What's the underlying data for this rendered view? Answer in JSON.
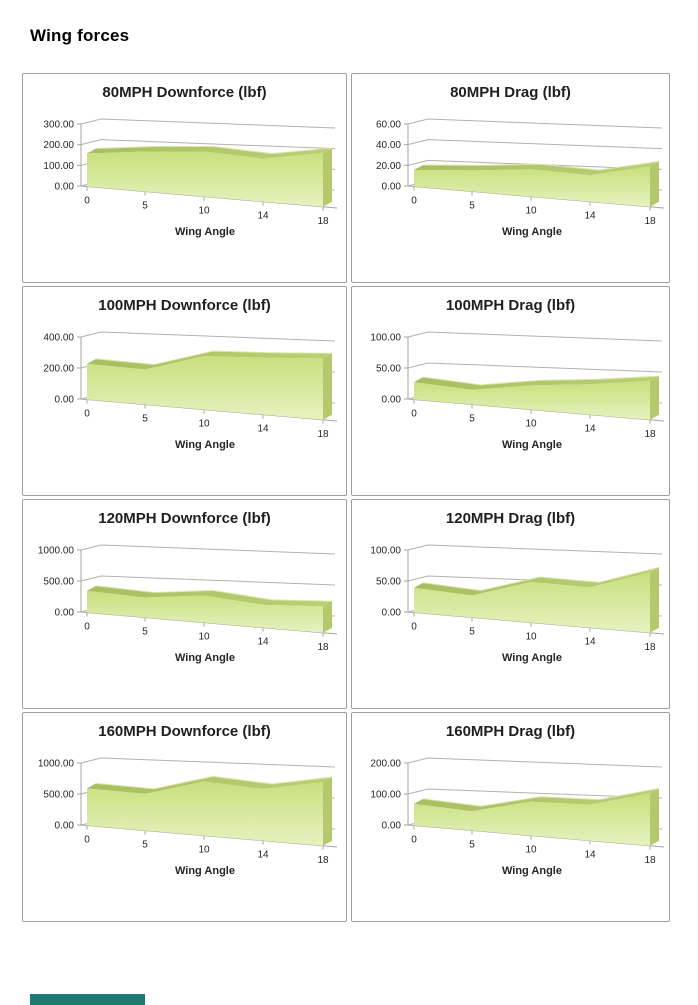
{
  "page": {
    "title": "Wing forces"
  },
  "footer": {
    "accent_bar_color": "#1e7b74"
  },
  "colors": {
    "area_face_top": "#c9df7d",
    "area_face_bottom": "#e6f2c1",
    "area_band": "#a9bd60",
    "area_band_light": "#bccf74",
    "area_side": "#b4c96b",
    "area_highlight": "#d9e7a4",
    "gridline": "#b5b1ab",
    "axis": "#a8a49e",
    "box_border": "#9f9f9f",
    "label": "#262626"
  },
  "chart_data": [
    {
      "type": "area",
      "style": "3d",
      "title": "80MPH Downforce (lbf)",
      "xlabel": "Wing Angle",
      "categories": [
        "0",
        "5",
        "10",
        "14",
        "18"
      ],
      "values": [
        160,
        180,
        190,
        170,
        200
      ],
      "ymax": 300,
      "ylim": [
        0,
        300
      ],
      "ytick_values": [
        0,
        100,
        200,
        300
      ],
      "ytick_labels": [
        "0.00",
        "100.00",
        "200.00",
        "300.00"
      ],
      "legend": "none",
      "grid": true
    },
    {
      "type": "area",
      "style": "3d",
      "title": "80MPH Drag (lbf)",
      "xlabel": "Wing Angle",
      "categories": [
        "0",
        "5",
        "10",
        "14",
        "18"
      ],
      "values": [
        16,
        19,
        23,
        21,
        30
      ],
      "ymax": 60,
      "ylim": [
        0,
        60
      ],
      "ytick_values": [
        0,
        20,
        40,
        60
      ],
      "ytick_labels": [
        "0.00",
        "20.00",
        "40.00",
        "60.00"
      ],
      "legend": "none",
      "grid": true
    },
    {
      "type": "area",
      "style": "3d",
      "title": "100MPH Downforce (lbf)",
      "xlabel": "Wing Angle",
      "categories": [
        "0",
        "5",
        "10",
        "14",
        "18"
      ],
      "values": [
        230,
        210,
        300,
        300,
        305
      ],
      "ymax": 400,
      "ylim": [
        0,
        400
      ],
      "ytick_values": [
        0,
        200,
        400
      ],
      "ytick_labels": [
        "0.00",
        "200.00",
        "400.00"
      ],
      "legend": "none",
      "grid": true
    },
    {
      "type": "area",
      "style": "3d",
      "title": "100MPH Drag (lbf)",
      "xlabel": "Wing Angle",
      "categories": [
        "0",
        "5",
        "10",
        "14",
        "18"
      ],
      "values": [
        28,
        22,
        34,
        40,
        48
      ],
      "ymax": 100,
      "ylim": [
        0,
        100
      ],
      "ytick_values": [
        0,
        50,
        100
      ],
      "ytick_labels": [
        "0.00",
        "50.00",
        "100.00"
      ],
      "legend": "none",
      "grid": true
    },
    {
      "type": "area",
      "style": "3d",
      "title": "120MPH Downforce (lbf)",
      "xlabel": "Wing Angle",
      "categories": [
        "0",
        "5",
        "10",
        "14",
        "18"
      ],
      "values": [
        350,
        300,
        380,
        300,
        330
      ],
      "ymax": 1000,
      "ylim": [
        0,
        1000
      ],
      "ytick_values": [
        0,
        500,
        1000
      ],
      "ytick_labels": [
        "0.00",
        "500.00",
        "1000.00"
      ],
      "legend": "none",
      "grid": true
    },
    {
      "type": "area",
      "style": "3d",
      "title": "120MPH Drag (lbf)",
      "xlabel": "Wing Angle",
      "categories": [
        "0",
        "5",
        "10",
        "14",
        "18"
      ],
      "values": [
        40,
        33,
        57,
        53,
        75
      ],
      "ymax": 100,
      "ylim": [
        0,
        100
      ],
      "ytick_values": [
        0,
        50,
        100
      ],
      "ytick_labels": [
        "0.00",
        "50.00",
        "100.00"
      ],
      "legend": "none",
      "grid": true
    },
    {
      "type": "area",
      "style": "3d",
      "title": "160MPH Downforce (lbf)",
      "xlabel": "Wing Angle",
      "categories": [
        "0",
        "5",
        "10",
        "14",
        "18"
      ],
      "values": [
        600,
        550,
        760,
        680,
        790
      ],
      "ymax": 1000,
      "ylim": [
        0,
        1000
      ],
      "ytick_values": [
        0,
        500,
        1000
      ],
      "ytick_labels": [
        "0.00",
        "500.00",
        "1000.00"
      ],
      "legend": "none",
      "grid": true
    },
    {
      "type": "area",
      "style": "3d",
      "title": "160MPH Drag (lbf)",
      "xlabel": "Wing Angle",
      "categories": [
        "0",
        "5",
        "10",
        "14",
        "18"
      ],
      "values": [
        70,
        58,
        95,
        95,
        130
      ],
      "ymax": 200,
      "ylim": [
        0,
        200
      ],
      "ytick_values": [
        0,
        100,
        200
      ],
      "ytick_labels": [
        "0.00",
        "100.00",
        "200.00"
      ],
      "legend": "none",
      "grid": true
    }
  ]
}
